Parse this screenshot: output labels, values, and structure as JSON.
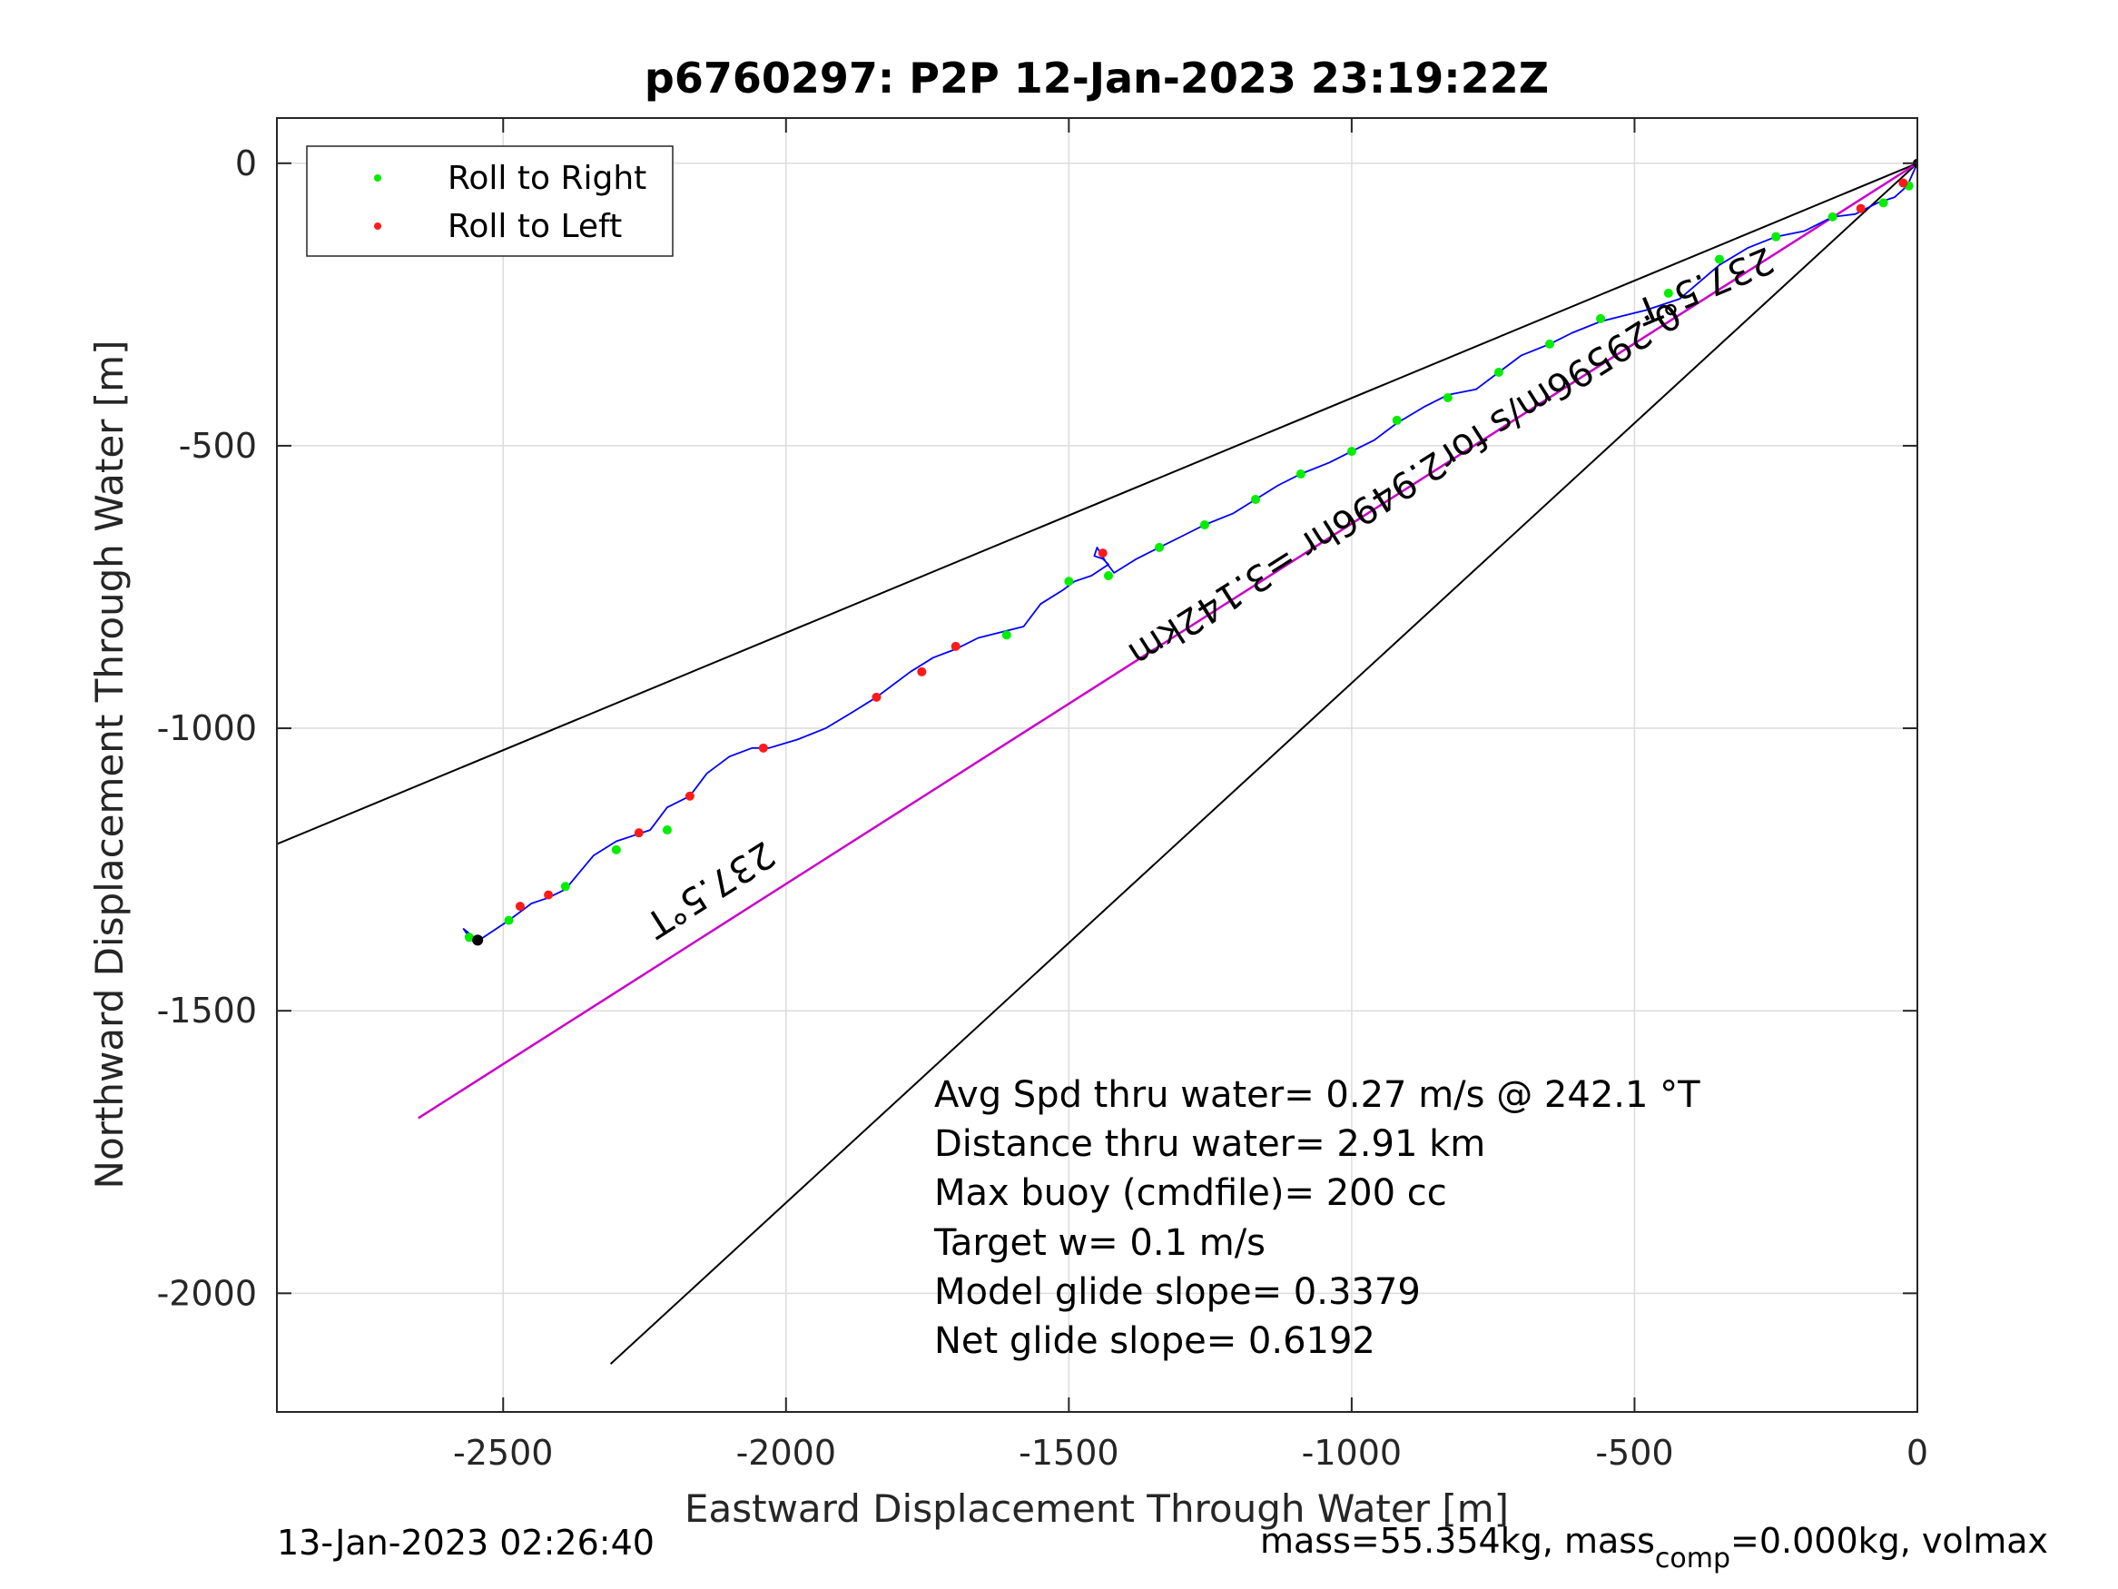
{
  "chart_data": {
    "type": "line",
    "title": "p6760297: P2P 12-Jan-2023 23:19:22Z",
    "xlabel": "Eastward Displacement Through Water [m]",
    "ylabel": "Northward Displacement Through Water [m]",
    "xlim": [
      -2900,
      0
    ],
    "ylim": [
      -2210,
      80
    ],
    "xticks": [
      -2500,
      -2000,
      -1500,
      -1000,
      -500,
      0
    ],
    "yticks": [
      0,
      -500,
      -1000,
      -1500,
      -2000
    ],
    "grid": true,
    "legend": {
      "position": "top-left",
      "entries": [
        {
          "label": "Roll to Right",
          "color": "#00ee00"
        },
        {
          "label": "Roll to Left",
          "color": "#ff1a1a"
        }
      ]
    },
    "colors": {
      "track": "#0000ff",
      "target": "#cc00cc",
      "bound": "#000000"
    },
    "track": {
      "x": [
        0,
        -18,
        -40,
        -70,
        -110,
        -150,
        -200,
        -250,
        -300,
        -350,
        -420,
        -480,
        -520,
        -560,
        -610,
        -650,
        -700,
        -740,
        -780,
        -830,
        -870,
        -920,
        -960,
        -1000,
        -1040,
        -1090,
        -1130,
        -1170,
        -1210,
        -1260,
        -1300,
        -1340,
        -1380,
        -1420,
        -1435,
        -1450,
        -1455,
        -1440,
        -1430,
        -1460,
        -1490,
        -1510,
        -1550,
        -1580,
        -1620,
        -1660,
        -1700,
        -1740,
        -1780,
        -1840,
        -1880,
        -1930,
        -1980,
        -2030,
        -2060,
        -2100,
        -2140,
        -2170,
        -2210,
        -2240,
        -2270,
        -2300,
        -2340,
        -2390,
        -2420,
        -2450,
        -2490,
        -2520,
        -2550,
        -2560,
        -2570,
        -2545
      ],
      "y": [
        0,
        -40,
        -60,
        -70,
        -90,
        -95,
        -120,
        -130,
        -150,
        -180,
        -240,
        -260,
        -270,
        -280,
        -300,
        -320,
        -340,
        -370,
        -400,
        -410,
        -430,
        -460,
        -490,
        -510,
        -530,
        -550,
        -570,
        -595,
        -620,
        -640,
        -660,
        -680,
        -700,
        -725,
        -705,
        -680,
        -695,
        -700,
        -710,
        -730,
        -740,
        -755,
        -780,
        -820,
        -830,
        -840,
        -860,
        -875,
        -900,
        -945,
        -970,
        -1000,
        -1020,
        -1035,
        -1035,
        -1050,
        -1080,
        -1120,
        -1140,
        -1180,
        -1190,
        -1200,
        -1225,
        -1285,
        -1300,
        -1310,
        -1340,
        -1360,
        -1380,
        -1370,
        -1355,
        -1375
      ]
    },
    "roll_right_points": {
      "x": [
        -15,
        -60,
        -150,
        -250,
        -350,
        -440,
        -560,
        -650,
        -740,
        -830,
        -920,
        -1000,
        -1090,
        -1170,
        -1260,
        -1340,
        -1430,
        -1500,
        -1610,
        -2210,
        -2300,
        -2390,
        -2490,
        -2560
      ],
      "y": [
        -40,
        -70,
        -95,
        -130,
        -170,
        -230,
        -275,
        -320,
        -370,
        -415,
        -455,
        -510,
        -550,
        -595,
        -640,
        -680,
        -730,
        -740,
        -835,
        -1180,
        -1215,
        -1280,
        -1340,
        -1370
      ]
    },
    "roll_left_points": {
      "x": [
        -25,
        -100,
        -1440,
        -1700,
        -1760,
        -1840,
        -2040,
        -2170,
        -2260,
        -2420,
        -2470
      ],
      "y": [
        -35,
        -80,
        -690,
        -855,
        -900,
        -945,
        -1035,
        -1120,
        -1185,
        -1295,
        -1315
      ]
    },
    "bound_lines": [
      {
        "x": [
          0,
          -2900
        ],
        "y": [
          0,
          -1205
        ]
      },
      {
        "x": [
          0,
          -2310
        ],
        "y": [
          0,
          -2125
        ]
      }
    ],
    "target_line": {
      "x": [
        0,
        -2650
      ],
      "y": [
        0,
        -1690
      ]
    },
    "annotations": {
      "heading_upper": "237.5°T",
      "heading_lower": "237.5°T",
      "speed_text": "0.29596m/s for2.9496hr =3.142km",
      "stats": [
        "Avg Spd thru water=  0.27 m/s @ 242.1 °T",
        "Distance thru water=  2.91 km",
        "Max buoy (cmdfile)= 200 cc",
        "Target w= 0.1 m/s",
        "Model glide slope= 0.3379",
        "Net glide slope= 0.6192"
      ]
    },
    "footer": {
      "timestamp": "13-Jan-2023 02:26:40",
      "mass_prefix": "mass=55.354kg, mass",
      "mass_sub": "comp",
      "mass_suffix": "=0.000kg, volmax"
    }
  }
}
